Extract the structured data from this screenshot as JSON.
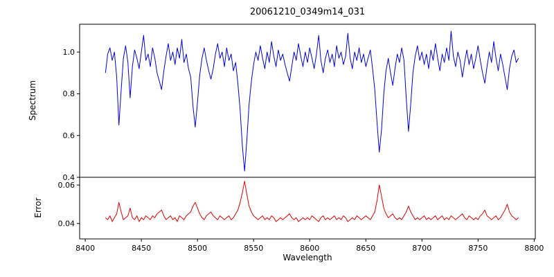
{
  "chart_data": {
    "type": "line",
    "title": "20061210_0349m14_031",
    "xlabel": "Wavelength",
    "x_start": 8418,
    "x_step": 2,
    "xlim": [
      8395,
      8801
    ],
    "xticks": [
      8400,
      8450,
      8500,
      8550,
      8600,
      8650,
      8700,
      8750,
      8800
    ],
    "legend": "none",
    "grid": false,
    "panels": [
      {
        "name": "spectrum",
        "ylabel": "Spectrum",
        "color": "#0000dd",
        "ylim": [
          0.4,
          1.133
        ],
        "yticks": [
          0.4,
          0.6,
          0.8,
          1.0
        ],
        "ytick_labels": [
          "0.4",
          "0.6",
          "0.8",
          "1.0"
        ],
        "absorption_features": [
          {
            "wavelength": 8430,
            "depth": 0.65
          },
          {
            "wavelength": 8440,
            "depth": 0.78
          },
          {
            "wavelength": 8468,
            "depth": 0.82
          },
          {
            "wavelength": 8498,
            "depth": 0.64
          },
          {
            "wavelength": 8542,
            "depth": 0.43
          },
          {
            "wavelength": 8662,
            "depth": 0.52
          },
          {
            "wavelength": 8688,
            "depth": 0.62
          }
        ],
        "values": [
          0.9,
          0.99,
          1.02,
          0.96,
          1.0,
          0.88,
          0.65,
          0.82,
          0.97,
          1.03,
          0.95,
          0.78,
          0.93,
          1.01,
          0.97,
          0.92,
          1.0,
          1.08,
          0.96,
          0.99,
          0.93,
          1.02,
          0.97,
          0.9,
          0.86,
          0.82,
          0.91,
          0.98,
          1.04,
          0.96,
          1.0,
          0.94,
          1.02,
          0.97,
          1.06,
          0.95,
          0.99,
          0.92,
          0.88,
          0.74,
          0.64,
          0.76,
          0.89,
          0.97,
          1.02,
          0.96,
          0.91,
          0.87,
          0.92,
          0.99,
          1.04,
          0.97,
          1.0,
          0.93,
          1.02,
          0.96,
          0.99,
          0.91,
          0.95,
          0.85,
          0.72,
          0.55,
          0.43,
          0.58,
          0.75,
          0.86,
          0.94,
          1.0,
          0.96,
          1.03,
          0.97,
          0.92,
          1.0,
          0.95,
          1.05,
          0.98,
          0.93,
          1.01,
          0.96,
          0.99,
          0.94,
          0.9,
          0.86,
          0.93,
          1.0,
          0.96,
          1.04,
          0.98,
          0.93,
          1.0,
          0.95,
          1.02,
          0.97,
          0.92,
          0.99,
          1.08,
          0.96,
          0.9,
          0.97,
          1.01,
          0.95,
          0.99,
          0.93,
          1.03,
          0.97,
          1.0,
          0.94,
          0.98,
          1.09,
          0.97,
          0.92,
          1.0,
          0.96,
          1.02,
          0.95,
          0.99,
          0.93,
          0.97,
          1.01,
          0.92,
          0.82,
          0.66,
          0.52,
          0.63,
          0.8,
          0.91,
          0.97,
          0.9,
          0.84,
          0.92,
          0.99,
          0.95,
          1.02,
          0.96,
          0.78,
          0.62,
          0.75,
          0.9,
          0.98,
          1.03,
          0.96,
          1.0,
          0.94,
          0.99,
          0.92,
          1.01,
          0.96,
          1.04,
          0.97,
          0.91,
          0.99,
          0.95,
          1.02,
          0.96,
          1.1,
          0.98,
          0.93,
          1.0,
          0.96,
          0.88,
          0.95,
          1.01,
          0.94,
          0.99,
          0.92,
          0.97,
          1.03,
          0.96,
          0.9,
          0.85,
          0.93,
          1.0,
          0.95,
          1.05,
          0.97,
          0.91,
          0.99,
          0.94,
          0.88,
          0.82,
          0.92,
          0.98,
          1.01,
          0.95,
          0.97
        ]
      },
      {
        "name": "error",
        "ylabel": "Error",
        "color": "#e00000",
        "ylim": [
          0.032,
          0.064
        ],
        "yticks": [
          0.04,
          0.06
        ],
        "ytick_labels": [
          "0.04",
          "0.06"
        ],
        "values": [
          0.043,
          0.042,
          0.044,
          0.041,
          0.043,
          0.045,
          0.051,
          0.046,
          0.042,
          0.043,
          0.044,
          0.048,
          0.043,
          0.042,
          0.044,
          0.041,
          0.043,
          0.042,
          0.044,
          0.043,
          0.042,
          0.044,
          0.043,
          0.045,
          0.046,
          0.047,
          0.044,
          0.042,
          0.043,
          0.044,
          0.042,
          0.043,
          0.041,
          0.044,
          0.043,
          0.042,
          0.044,
          0.045,
          0.046,
          0.049,
          0.051,
          0.048,
          0.045,
          0.043,
          0.042,
          0.044,
          0.045,
          0.046,
          0.044,
          0.043,
          0.042,
          0.044,
          0.043,
          0.042,
          0.043,
          0.044,
          0.042,
          0.043,
          0.045,
          0.047,
          0.051,
          0.056,
          0.062,
          0.055,
          0.049,
          0.046,
          0.044,
          0.043,
          0.042,
          0.043,
          0.044,
          0.042,
          0.043,
          0.042,
          0.044,
          0.043,
          0.041,
          0.042,
          0.043,
          0.042,
          0.043,
          0.044,
          0.045,
          0.043,
          0.042,
          0.043,
          0.041,
          0.042,
          0.043,
          0.042,
          0.043,
          0.042,
          0.044,
          0.043,
          0.042,
          0.041,
          0.043,
          0.044,
          0.042,
          0.043,
          0.042,
          0.043,
          0.044,
          0.042,
          0.043,
          0.042,
          0.044,
          0.043,
          0.041,
          0.042,
          0.043,
          0.042,
          0.044,
          0.043,
          0.042,
          0.043,
          0.044,
          0.043,
          0.042,
          0.044,
          0.046,
          0.052,
          0.06,
          0.054,
          0.048,
          0.045,
          0.043,
          0.044,
          0.045,
          0.043,
          0.042,
          0.043,
          0.042,
          0.044,
          0.046,
          0.049,
          0.046,
          0.044,
          0.042,
          0.043,
          0.042,
          0.043,
          0.044,
          0.042,
          0.043,
          0.042,
          0.043,
          0.044,
          0.042,
          0.043,
          0.044,
          0.042,
          0.043,
          0.042,
          0.044,
          0.043,
          0.042,
          0.043,
          0.044,
          0.045,
          0.043,
          0.042,
          0.044,
          0.043,
          0.042,
          0.043,
          0.042,
          0.044,
          0.045,
          0.047,
          0.044,
          0.043,
          0.042,
          0.043,
          0.044,
          0.042,
          0.043,
          0.045,
          0.047,
          0.05,
          0.046,
          0.044,
          0.043,
          0.042,
          0.043
        ]
      }
    ]
  }
}
